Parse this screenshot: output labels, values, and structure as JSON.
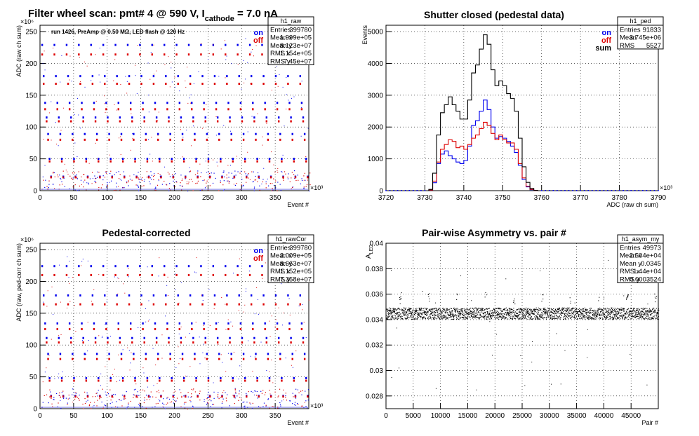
{
  "page": {
    "main_title_prefix": "Filter wheel scan: pmt#   4 @   590 V, I",
    "main_title_sub": "cathode",
    "main_title_suffix": " = 7.0 nA",
    "run_info": "run 1426, PreAmp @ 0.50 MΩ, LED flash @  120 Hz"
  },
  "chart_data": [
    {
      "id": "raw",
      "type": "scatter",
      "title": "",
      "xlabel": "Event #",
      "ylabel": "ADC (raw ch sum)",
      "x_exponent": "×10³",
      "y_exponent": "×10⁶",
      "xlim": [
        0,
        400
      ],
      "ylim": [
        0,
        260
      ],
      "xticks": [
        0,
        50,
        100,
        150,
        200,
        250,
        300,
        350
      ],
      "yticks": [
        0,
        50,
        100,
        150,
        200,
        250
      ],
      "legend": [
        {
          "name": "on",
          "color": "#0000ee"
        },
        {
          "name": "off",
          "color": "#dd0000"
        }
      ],
      "levels": [
        {
          "on": 229,
          "off": 214
        },
        {
          "on": 180,
          "off": 168
        },
        {
          "on": 138,
          "off": 128
        },
        {
          "on": 115,
          "off": 109
        },
        {
          "on": 89,
          "off": 80
        },
        {
          "on": 50,
          "off": 46
        },
        {
          "on": 22,
          "off": 21
        }
      ],
      "stats": {
        "name": "h1_raw",
        "rows": [
          [
            "Entries",
            "399780"
          ],
          [
            "Mean x",
            "1.999e+05"
          ],
          [
            "Mean y",
            "8.123e+07"
          ],
          [
            "RMS x",
            "1.154e+05"
          ],
          [
            "RMS y",
            "7.45e+07"
          ]
        ]
      }
    },
    {
      "id": "ped",
      "type": "line",
      "title": "Shutter closed (pedestal data)",
      "xlabel": "ADC (raw ch sum)",
      "ylabel": "Events",
      "x_exponent": "×10³",
      "xlim": [
        3720,
        3790
      ],
      "ylim": [
        0,
        5200
      ],
      "xticks": [
        3720,
        3730,
        3740,
        3750,
        3760,
        3770,
        3780,
        3790
      ],
      "yticks": [
        0,
        1000,
        2000,
        3000,
        4000,
        5000
      ],
      "legend": [
        {
          "name": "on",
          "color": "#0000ee"
        },
        {
          "name": "off",
          "color": "#dd0000"
        },
        {
          "name": "sum",
          "color": "#000000"
        }
      ],
      "x": [
        3730,
        3731,
        3732,
        3733,
        3734,
        3735,
        3736,
        3737,
        3738,
        3739,
        3740,
        3741,
        3742,
        3743,
        3744,
        3745,
        3746,
        3747,
        3748,
        3749,
        3750,
        3751,
        3752,
        3753,
        3754,
        3755,
        3756,
        3757,
        3758,
        3759,
        3760
      ],
      "series": [
        {
          "name": "on",
          "color": "#0000ee",
          "values": [
            0,
            20,
            250,
            850,
            1150,
            1250,
            1100,
            1000,
            900,
            850,
            950,
            1400,
            2050,
            2200,
            2500,
            2850,
            2550,
            2000,
            1650,
            1700,
            1650,
            1550,
            1400,
            1200,
            800,
            350,
            120,
            30,
            5,
            0,
            0
          ]
        },
        {
          "name": "off",
          "color": "#dd0000",
          "values": [
            0,
            20,
            300,
            900,
            1300,
            1450,
            1600,
            1550,
            1350,
            1400,
            1300,
            1450,
            1650,
            1750,
            1950,
            2150,
            2050,
            1800,
            1600,
            1750,
            1600,
            1500,
            1500,
            1300,
            850,
            400,
            140,
            40,
            5,
            0,
            0
          ]
        },
        {
          "name": "sum",
          "color": "#000000",
          "values": [
            0,
            40,
            550,
            1750,
            2450,
            2700,
            2950,
            2700,
            2500,
            2250,
            2250,
            2850,
            3700,
            3950,
            4450,
            4900,
            4600,
            3800,
            3300,
            3450,
            3300,
            3050,
            2900,
            2500,
            1650,
            750,
            260,
            70,
            10,
            0,
            0
          ]
        }
      ],
      "stats": {
        "name": "h1_ped",
        "rows": [
          [
            "Entries",
            "91833"
          ],
          [
            "Mean",
            "3.745e+06"
          ],
          [
            "RMS",
            "5527"
          ]
        ]
      }
    },
    {
      "id": "rawCor",
      "type": "scatter",
      "title": "Pedestal-corrected",
      "xlabel": "Event #",
      "ylabel": "ADC (raw, ped-corr ch sum)",
      "x_exponent": "×10³",
      "y_exponent": "×10⁶",
      "xlim": [
        0,
        400
      ],
      "ylim": [
        0,
        260
      ],
      "xticks": [
        0,
        50,
        100,
        150,
        200,
        250,
        300,
        350
      ],
      "yticks": [
        0,
        50,
        100,
        150,
        200,
        250
      ],
      "legend": [
        {
          "name": "on",
          "color": "#0000ee"
        },
        {
          "name": "off",
          "color": "#dd0000"
        }
      ],
      "levels": [
        {
          "on": 224,
          "off": 210
        },
        {
          "on": 178,
          "off": 164
        },
        {
          "on": 134,
          "off": 125
        },
        {
          "on": 111,
          "off": 104
        },
        {
          "on": 86,
          "off": 78
        },
        {
          "on": 48,
          "off": 44
        },
        {
          "on": 20,
          "off": 19
        }
      ],
      "stats": {
        "name": "h1_rawCor",
        "rows": [
          [
            "Entries",
            "399780"
          ],
          [
            "Mean x",
            "2.009e+05"
          ],
          [
            "Mean y",
            "8.663e+07"
          ],
          [
            "RMS x",
            "1.152e+05"
          ],
          [
            "RMS y",
            "7.358e+07"
          ]
        ]
      }
    },
    {
      "id": "asym",
      "type": "scatter",
      "title": "Pair-wise Asymmetry vs. pair #",
      "xlabel": "Pair #",
      "ylabel": "A_LED",
      "ylabel_main": "A",
      "ylabel_sub": "LED",
      "xlim": [
        0,
        50000
      ],
      "ylim": [
        0.027,
        0.04
      ],
      "xticks": [
        0,
        5000,
        10000,
        15000,
        20000,
        25000,
        30000,
        35000,
        40000,
        45000
      ],
      "yticks": [
        0.028,
        0.03,
        0.032,
        0.034,
        0.036,
        0.038,
        0.04
      ],
      "band_center": 0.0345,
      "band_width": 0.0009,
      "stats": {
        "name": "h1_asym_my",
        "rows": [
          [
            "Entries",
            "49973"
          ],
          [
            "Mean x",
            "2.504e+04"
          ],
          [
            "Mean y",
            "0.0345"
          ],
          [
            "RMS x",
            "1.44e+04"
          ],
          [
            "RMS y",
            "0.0003524"
          ]
        ]
      }
    }
  ]
}
